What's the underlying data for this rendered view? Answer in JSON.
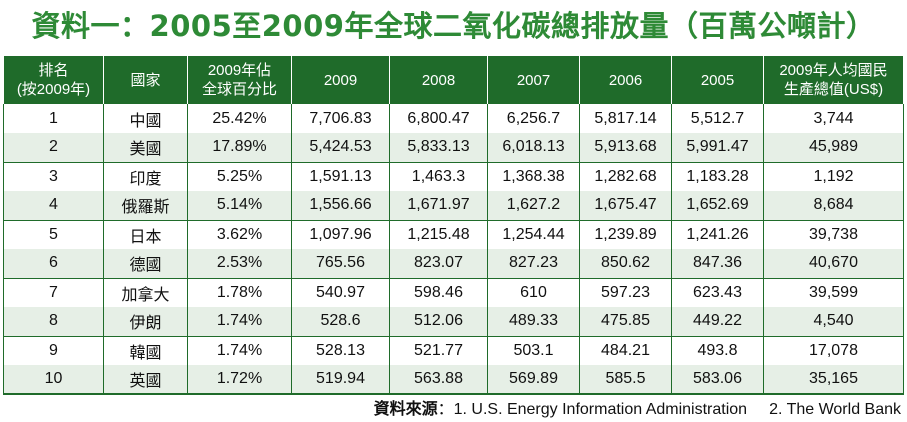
{
  "title": "資料一：2005至2009年全球二氧化碳總排放量（百萬公噸計）",
  "table": {
    "headers": {
      "rank": "排名\n(按2009年)",
      "country": "國家",
      "share": "2009年佔\n全球百分比",
      "y2009": "2009",
      "y2008": "2008",
      "y2007": "2007",
      "y2006": "2006",
      "y2005": "2005",
      "gdp": "2009年人均國民\n生產總值(US$)"
    },
    "rows": [
      {
        "rank": "1",
        "country": "中國",
        "share": "25.42%",
        "y2009": "7,706.83",
        "y2008": "6,800.47",
        "y2007": "6,256.7",
        "y2006": "5,817.14",
        "y2005": "5,512.7",
        "gdp": "3,744"
      },
      {
        "rank": "2",
        "country": "美國",
        "share": "17.89%",
        "y2009": "5,424.53",
        "y2008": "5,833.13",
        "y2007": "6,018.13",
        "y2006": "5,913.68",
        "y2005": "5,991.47",
        "gdp": "45,989"
      },
      {
        "rank": "3",
        "country": "印度",
        "share": "5.25%",
        "y2009": "1,591.13",
        "y2008": "1,463.3",
        "y2007": "1,368.38",
        "y2006": "1,282.68",
        "y2005": "1,183.28",
        "gdp": "1,192"
      },
      {
        "rank": "4",
        "country": "俄羅斯",
        "share": "5.14%",
        "y2009": "1,556.66",
        "y2008": "1,671.97",
        "y2007": "1,627.2",
        "y2006": "1,675.47",
        "y2005": "1,652.69",
        "gdp": "8,684"
      },
      {
        "rank": "5",
        "country": "日本",
        "share": "3.62%",
        "y2009": "1,097.96",
        "y2008": "1,215.48",
        "y2007": "1,254.44",
        "y2006": "1,239.89",
        "y2005": "1,241.26",
        "gdp": "39,738"
      },
      {
        "rank": "6",
        "country": "德國",
        "share": "2.53%",
        "y2009": "765.56",
        "y2008": "823.07",
        "y2007": "827.23",
        "y2006": "850.62",
        "y2005": "847.36",
        "gdp": "40,670"
      },
      {
        "rank": "7",
        "country": "加拿大",
        "share": "1.78%",
        "y2009": "540.97",
        "y2008": "598.46",
        "y2007": "610",
        "y2006": "597.23",
        "y2005": "623.43",
        "gdp": "39,599"
      },
      {
        "rank": "8",
        "country": "伊朗",
        "share": "1.74%",
        "y2009": "528.6",
        "y2008": "512.06",
        "y2007": "489.33",
        "y2006": "475.85",
        "y2005": "449.22",
        "gdp": "4,540"
      },
      {
        "rank": "9",
        "country": "韓國",
        "share": "1.74%",
        "y2009": "528.13",
        "y2008": "521.77",
        "y2007": "503.1",
        "y2006": "484.21",
        "y2005": "493.8",
        "gdp": "17,078"
      },
      {
        "rank": "10",
        "country": "英國",
        "share": "1.72%",
        "y2009": "519.94",
        "y2008": "563.88",
        "y2007": "569.89",
        "y2006": "585.5",
        "y2005": "583.06",
        "gdp": "35,165"
      }
    ]
  },
  "source": {
    "label": "資料來源",
    "colon": "：",
    "item1": "1. U.S. Energy Information Administration",
    "item2": "2. The World Bank"
  },
  "colors": {
    "title": "#2e8a36",
    "header_bg": "#1f6b2a",
    "stripe": "#e6efe6"
  }
}
